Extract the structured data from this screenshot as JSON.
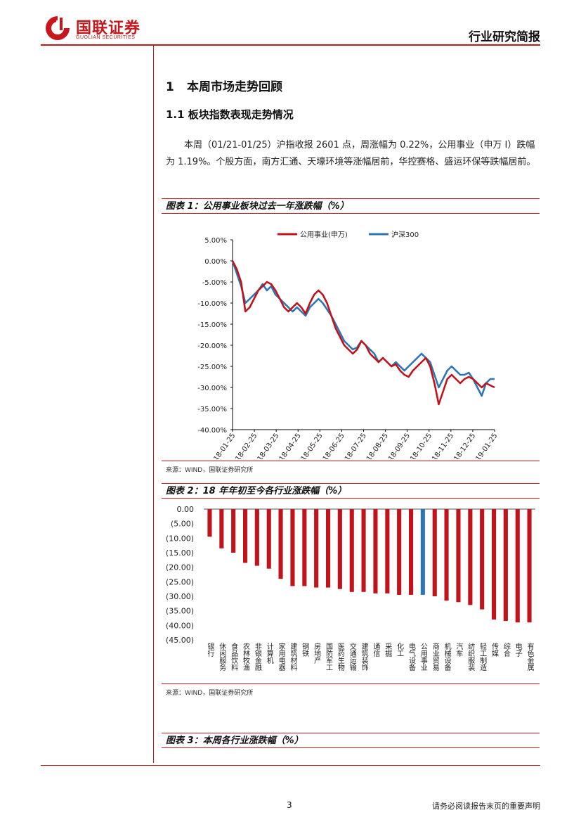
{
  "header": {
    "logo_cn": "国联证券",
    "logo_en": "GUOLIAN SECURITIES",
    "report_type": "行业研究简报"
  },
  "section1": {
    "number": "1",
    "title": "本周市场走势回顾"
  },
  "section11": {
    "title": "1.1 板块指数表现走势情况"
  },
  "paragraph": "本周（01/21-01/25）沪指收报 2601 点，周涨幅为 0.22%，公用事业（申万 I）跌幅为 1.19%。个股方面，南方汇通、天壕环境等涨幅居前，华控赛格、盛运环保等跌幅居前。",
  "figure1": {
    "title": "图表 1：公用事业板块过去一年涨跌幅（%）",
    "source": "来源：WIND，国联证券研究所"
  },
  "figure2": {
    "title": "图表 2：18 年年初至今各行业涨跌幅（%）",
    "source": "来源：WIND，国联证券研究所"
  },
  "figure3": {
    "title": "图表 3：本周各行业涨跌幅（%）"
  },
  "footer": {
    "page": "3",
    "disclaimer": "请务必阅读报告末页的重要声明"
  },
  "chart_data": [
    {
      "type": "line",
      "title": "公用事业板块过去一年涨跌幅（%）",
      "legend_position": "top",
      "colors": {
        "公用事业(申万)": "#c0141c",
        "沪深300": "#2e75b6"
      },
      "y_tick_labels": [
        "5.00%",
        "0.00%",
        "-5.00%",
        "-10.00%",
        "-15.00%",
        "-20.00%",
        "-25.00%",
        "-30.00%",
        "-35.00%",
        "-40.00%"
      ],
      "x_tick_labels": [
        "2018-01-25",
        "2018-02-25",
        "2018-03-25",
        "2018-04-25",
        "2018-05-25",
        "2018-06-25",
        "2018-07-25",
        "2018-08-25",
        "2018-09-25",
        "2018-10-25",
        "2018-11-25",
        "2018-12-25",
        "2019-01-25"
      ],
      "ylim": [
        -40,
        5
      ],
      "series": [
        {
          "name": "公用事业(申万)",
          "values": [
            0,
            -2,
            -5,
            -12,
            -11,
            -9,
            -7,
            -6,
            -5,
            -5.5,
            -7,
            -9,
            -11,
            -12,
            -11,
            -10,
            -11,
            -12.5,
            -10,
            -8,
            -7,
            -8,
            -10,
            -13,
            -16,
            -18,
            -20,
            -21,
            -22,
            -21,
            -19,
            -20,
            -22,
            -23,
            -24,
            -23,
            -24,
            -25,
            -24.5,
            -26,
            -27,
            -27.5,
            -26,
            -25,
            -24,
            -23,
            -25,
            -29,
            -34,
            -31,
            -28,
            -27,
            -28,
            -29,
            -28,
            -27.5,
            -28,
            -29,
            -30,
            -29,
            -29.5,
            -30
          ]
        },
        {
          "name": "沪深300",
          "values": [
            0,
            -3,
            -6,
            -10,
            -9,
            -8,
            -7,
            -5.5,
            -7,
            -6,
            -8,
            -9,
            -10,
            -11,
            -12,
            -11,
            -12,
            -13,
            -11,
            -10,
            -9,
            -10,
            -11.5,
            -13,
            -15,
            -17,
            -19,
            -20,
            -21,
            -20.5,
            -19,
            -20,
            -21,
            -22,
            -24,
            -23,
            -24,
            -25,
            -24,
            -25,
            -26,
            -25,
            -24,
            -23,
            -22,
            -23,
            -24,
            -27,
            -30,
            -28,
            -26,
            -25,
            -26,
            -27,
            -27,
            -26.5,
            -28,
            -30,
            -32,
            -29,
            -28,
            -28
          ]
        }
      ]
    },
    {
      "type": "bar",
      "title": "18 年年初至今各行业涨跌幅（%）",
      "ylim": [
        -45,
        0
      ],
      "y_tick_labels": [
        "0.00",
        "(5.00)",
        "(10.00)",
        "(15.00)",
        "(20.00)",
        "(25.00)",
        "(30.00)",
        "(35.00)",
        "(40.00)",
        "(45.00)"
      ],
      "categories": [
        "银行",
        "休闲服务",
        "食品饮料",
        "农林牧渔",
        "非银金融",
        "计算机",
        "家用电器",
        "建筑材料",
        "钢铁",
        "房地产",
        "国防军工",
        "医药生物",
        "交通运输",
        "建筑装饰",
        "通信",
        "采掘",
        "化工",
        "电气设备",
        "公用事业",
        "商业贸易",
        "机械设备",
        "汽车",
        "纺织服装",
        "轻工制造",
        "传媒",
        "综合",
        "电子",
        "有色金属"
      ],
      "values": [
        -9.5,
        -13.5,
        -15,
        -18.5,
        -19.5,
        -20.5,
        -24,
        -26.5,
        -26.5,
        -27,
        -27,
        -27.5,
        -28.5,
        -28.5,
        -29,
        -29,
        -29.5,
        -29.5,
        -29.5,
        -30,
        -31.5,
        -32,
        -33,
        -34.5,
        -38,
        -38.5,
        -39,
        -39
      ],
      "highlight": "公用事业",
      "colors": {
        "default": "#c0141c",
        "highlight": "#2e75b6"
      }
    }
  ]
}
